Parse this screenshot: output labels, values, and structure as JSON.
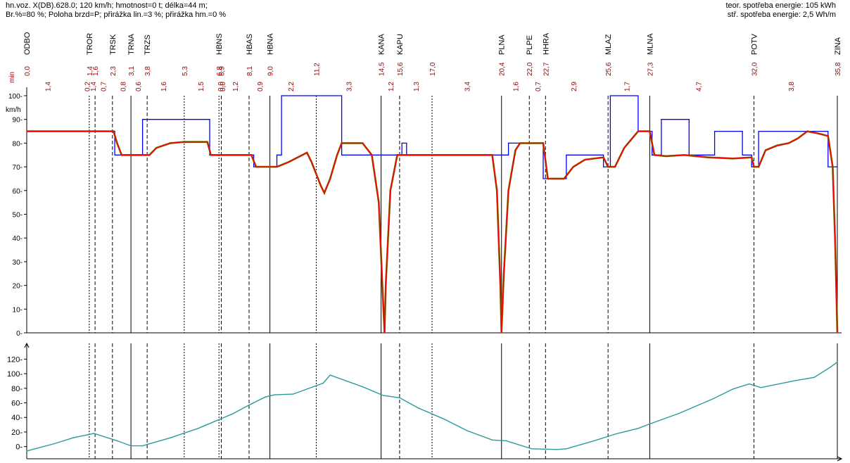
{
  "header": {
    "line1": "hn.voz. X(DB).628.0; 120 km/h; hmotnost=0 t; délka=44 m;",
    "line2": "Br.%=80 %; Poloha brzd=P; přirážka lin.=3 %; přirážka hm.=0 %",
    "energy_theoretical": "teor. spotřeba energie: 105 kWh",
    "energy_mean": "stř. spotřeba energie: 2,5 Wh/m"
  },
  "colors": {
    "speed_limit": "#0000ff",
    "speed_actual": "#ff0000",
    "speed_braking": "#7a5a00",
    "elevation": "#2a9a9a",
    "axis": "#000000",
    "time_labels": "#990000"
  },
  "chart_data": [
    {
      "type": "line",
      "x_label": "",
      "ylabel": "km/h",
      "time_axis_label": "min",
      "ylim": [
        0,
        100
      ],
      "y_ticks": [
        0,
        10,
        20,
        30,
        40,
        50,
        60,
        70,
        80,
        90,
        100
      ],
      "stations": [
        {
          "name": "ODBO",
          "x": 0.0,
          "time": "0,0",
          "line": "none"
        },
        {
          "name": "TROR",
          "x": 2.7,
          "time": "1,4",
          "line": "dotted"
        },
        {
          "name": "",
          "x": 2.95,
          "time": "1,6",
          "line": "dashed"
        },
        {
          "name": "TRSK",
          "x": 3.7,
          "time": "2,3",
          "line": "dashed"
        },
        {
          "name": "TRNA",
          "x": 4.5,
          "time": "3,1",
          "line": "solid"
        },
        {
          "name": "TRZS",
          "x": 5.2,
          "time": "3,8",
          "line": "dashed"
        },
        {
          "name": "",
          "x": 6.8,
          "time": "5,3",
          "line": "dotted"
        },
        {
          "name": "HBNS",
          "x": 8.3,
          "time": "6,8",
          "line": "dotted"
        },
        {
          "name": "",
          "x": 8.4,
          "time": "6,9",
          "line": "dashed"
        },
        {
          "name": "HBAS",
          "x": 9.6,
          "time": "8,1",
          "line": "dashed"
        },
        {
          "name": "HBNA",
          "x": 10.5,
          "time": "9,0",
          "line": "solid"
        },
        {
          "name": "",
          "x": 12.5,
          "time": "11,2",
          "line": "dotted"
        },
        {
          "name": "KANA",
          "x": 15.3,
          "time": "14,5",
          "line": "solid"
        },
        {
          "name": "KAPU",
          "x": 16.1,
          "time": "15,6",
          "line": "dashed"
        },
        {
          "name": "",
          "x": 17.5,
          "time": "17,0",
          "line": "dotted"
        },
        {
          "name": "PLNA",
          "x": 20.5,
          "time": "20,4",
          "line": "solid"
        },
        {
          "name": "PLPE",
          "x": 21.7,
          "time": "22,0",
          "line": "dashed"
        },
        {
          "name": "HHRA",
          "x": 22.4,
          "time": "22,7",
          "line": "dashed"
        },
        {
          "name": "MLAZ",
          "x": 25.1,
          "time": "25,6",
          "line": "dashed"
        },
        {
          "name": "MLNA",
          "x": 26.9,
          "time": "27,3",
          "line": "solid"
        },
        {
          "name": "POTV",
          "x": 31.4,
          "time": "32,0",
          "line": "dashed"
        },
        {
          "name": "ZINA",
          "x": 35.0,
          "time": "35,8",
          "line": "solid"
        }
      ],
      "segment_times": [
        {
          "x": 0.9,
          "label": "1,4"
        },
        {
          "x": 2.6,
          "label": "0,2"
        },
        {
          "x": 2.85,
          "label": "1,4"
        },
        {
          "x": 3.3,
          "label": "0,7"
        },
        {
          "x": 4.15,
          "label": "0,8"
        },
        {
          "x": 4.8,
          "label": "0,6"
        },
        {
          "x": 5.9,
          "label": "1,6"
        },
        {
          "x": 7.5,
          "label": "1,5"
        },
        {
          "x": 8.35,
          "label": "0,0"
        },
        {
          "x": 8.45,
          "label": "0,0"
        },
        {
          "x": 9.0,
          "label": "1,2"
        },
        {
          "x": 10.05,
          "label": "0,9"
        },
        {
          "x": 11.4,
          "label": "2,2"
        },
        {
          "x": 13.9,
          "label": "3,3"
        },
        {
          "x": 15.7,
          "label": "1,2"
        },
        {
          "x": 16.8,
          "label": "1,3"
        },
        {
          "x": 19.0,
          "label": "3,4"
        },
        {
          "x": 21.1,
          "label": "1,6"
        },
        {
          "x": 22.05,
          "label": "0,7"
        },
        {
          "x": 23.6,
          "label": "2,9"
        },
        {
          "x": 25.9,
          "label": "1,7"
        },
        {
          "x": 29.0,
          "label": "4,7"
        },
        {
          "x": 33.0,
          "label": "3,8"
        }
      ],
      "series": [
        {
          "name": "",
          "role": "speed_limit",
          "color": "#0000ff",
          "points": [
            [
              0,
              85
            ],
            [
              3.8,
              85
            ],
            [
              3.8,
              75
            ],
            [
              5.0,
              75
            ],
            [
              5.0,
              90
            ],
            [
              7.9,
              90
            ],
            [
              7.9,
              75
            ],
            [
              9.8,
              75
            ],
            [
              9.8,
              70
            ],
            [
              10.8,
              70
            ],
            [
              10.8,
              75
            ],
            [
              11.0,
              75
            ],
            [
              11.0,
              100
            ],
            [
              13.6,
              100
            ],
            [
              13.6,
              75
            ],
            [
              16.2,
              75
            ],
            [
              16.2,
              80
            ],
            [
              16.4,
              80
            ],
            [
              16.4,
              75
            ],
            [
              20.8,
              75
            ],
            [
              20.8,
              80
            ],
            [
              22.3,
              80
            ],
            [
              22.3,
              65
            ],
            [
              23.3,
              65
            ],
            [
              23.3,
              75
            ],
            [
              24.9,
              75
            ],
            [
              24.9,
              70
            ],
            [
              25.2,
              70
            ],
            [
              25.2,
              100
            ],
            [
              26.4,
              100
            ],
            [
              26.4,
              85
            ],
            [
              27.0,
              85
            ],
            [
              27.0,
              75
            ],
            [
              27.4,
              75
            ],
            [
              27.4,
              90
            ],
            [
              28.6,
              90
            ],
            [
              28.6,
              75
            ],
            [
              29.7,
              75
            ],
            [
              29.7,
              85
            ],
            [
              30.9,
              85
            ],
            [
              30.9,
              75
            ],
            [
              31.3,
              75
            ],
            [
              31.3,
              70
            ],
            [
              31.6,
              70
            ],
            [
              31.6,
              85
            ],
            [
              34.6,
              85
            ],
            [
              34.6,
              70
            ],
            [
              35.0,
              70
            ]
          ]
        },
        {
          "name": "",
          "role": "speed_actual",
          "color": "#ff0000",
          "points": [
            [
              0,
              85
            ],
            [
              3.75,
              85
            ],
            [
              3.9,
              80
            ],
            [
              4.1,
              75
            ],
            [
              5.3,
              75
            ],
            [
              5.6,
              78
            ],
            [
              6.2,
              80
            ],
            [
              6.8,
              80.5
            ],
            [
              7.8,
              80.5
            ],
            [
              7.95,
              75
            ],
            [
              9.7,
              75
            ],
            [
              9.9,
              70
            ],
            [
              10.8,
              70
            ],
            [
              11.3,
              72
            ],
            [
              11.9,
              75
            ],
            [
              12.1,
              76
            ],
            [
              12.3,
              72
            ],
            [
              12.7,
              62
            ],
            [
              12.85,
              59
            ],
            [
              13.1,
              65
            ],
            [
              13.4,
              75
            ],
            [
              13.6,
              80
            ],
            [
              14.5,
              80
            ],
            [
              14.9,
              75
            ],
            [
              15.2,
              55
            ],
            [
              15.4,
              10
            ],
            [
              15.45,
              0
            ],
            [
              15.5,
              20
            ],
            [
              15.7,
              60
            ],
            [
              16.0,
              75
            ],
            [
              20.1,
              75
            ],
            [
              20.3,
              60
            ],
            [
              20.45,
              20
            ],
            [
              20.5,
              0
            ],
            [
              20.6,
              25
            ],
            [
              20.8,
              60
            ],
            [
              21.1,
              77
            ],
            [
              21.3,
              80
            ],
            [
              22.3,
              80
            ],
            [
              22.5,
              65
            ],
            [
              23.2,
              65
            ],
            [
              23.6,
              70
            ],
            [
              24.1,
              73
            ],
            [
              24.9,
              74
            ],
            [
              25.1,
              70
            ],
            [
              25.4,
              70
            ],
            [
              25.8,
              78
            ],
            [
              26.4,
              85
            ],
            [
              26.9,
              85
            ],
            [
              27.1,
              75
            ],
            [
              27.6,
              74.5
            ],
            [
              28.4,
              75
            ],
            [
              29.4,
              74
            ],
            [
              30.5,
              73.5
            ],
            [
              31.3,
              74
            ],
            [
              31.4,
              70
            ],
            [
              31.6,
              70
            ],
            [
              31.9,
              77
            ],
            [
              32.4,
              79
            ],
            [
              32.9,
              80
            ],
            [
              33.3,
              82
            ],
            [
              33.7,
              85
            ],
            [
              34.2,
              84
            ],
            [
              34.6,
              83
            ],
            [
              34.8,
              70
            ],
            [
              34.9,
              40
            ],
            [
              34.95,
              20
            ],
            [
              35.0,
              0
            ]
          ]
        }
      ],
      "x_range": [
        0,
        35.0
      ]
    },
    {
      "type": "line",
      "ylim": [
        -10,
        130
      ],
      "y_ticks": [
        0,
        20,
        40,
        60,
        80,
        100,
        120
      ],
      "series": [
        {
          "name": "",
          "role": "elevation",
          "color": "#2a9a9a",
          "x": [
            0,
            1.2,
            2.0,
            2.9,
            3.9,
            4.5,
            5.0,
            6.2,
            7.4,
            8.9,
            9.6,
            10.3,
            10.7,
            11.5,
            12.8,
            13.1,
            14.5,
            15.4,
            16.1,
            16.9,
            18.0,
            19.0,
            20.1,
            20.7,
            21.8,
            22.9,
            23.3,
            24.5,
            25.4,
            26.4,
            26.9,
            28.2,
            29.6,
            30.5,
            31.2,
            31.7,
            33.1,
            34.0,
            34.7,
            35.0
          ],
          "values": [
            -6,
            4,
            12,
            18,
            8,
            1,
            1,
            12,
            25,
            45,
            57,
            68,
            71,
            72,
            87,
            98,
            82,
            70,
            67,
            53,
            38,
            22,
            9,
            8,
            -3,
            -4,
            -3,
            8,
            17,
            25,
            31,
            46,
            65,
            79,
            86,
            81,
            90,
            95,
            109,
            116
          ]
        }
      ],
      "x_range": [
        0,
        35.0
      ]
    }
  ]
}
